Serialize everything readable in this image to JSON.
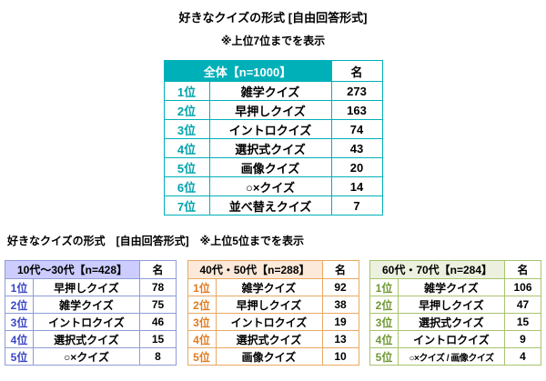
{
  "titles": {
    "main": "好きなクイズの形式 [自由回答形式]",
    "main_note": "※上位7位までを表示",
    "section2": "好きなクイズの形式　[自由回答形式]　※上位5位までを表示"
  },
  "colors": {
    "overall_accent": "#00b0b9",
    "age_10_30_header": "#ccccff",
    "age_10_30_rank": "#3a45c4",
    "age_40_50_header": "#fde9d9",
    "age_40_50_rank": "#e07b20",
    "age_60_70_header": "#ebf1de",
    "age_60_70_rank": "#6f9832"
  },
  "chart_data": [
    {
      "type": "table",
      "group": "全体【n=1000】",
      "unit": "名",
      "rows": [
        {
          "rank": "1位",
          "label": "雑学クイズ",
          "value": 273
        },
        {
          "rank": "2位",
          "label": "早押しクイズ",
          "value": 163
        },
        {
          "rank": "3位",
          "label": "イントロクイズ",
          "value": 74
        },
        {
          "rank": "4位",
          "label": "選択式クイズ",
          "value": 43
        },
        {
          "rank": "5位",
          "label": "画像クイズ",
          "value": 20
        },
        {
          "rank": "6位",
          "label": "○×クイズ",
          "value": 14
        },
        {
          "rank": "7位",
          "label": "並べ替えクイズ",
          "value": 7
        }
      ]
    },
    {
      "type": "table",
      "group": "10代～30代【n=428】",
      "unit": "名",
      "rows": [
        {
          "rank": "1位",
          "label": "早押しクイズ",
          "value": 78
        },
        {
          "rank": "2位",
          "label": "雑学クイズ",
          "value": 75
        },
        {
          "rank": "3位",
          "label": "イントロクイズ",
          "value": 46
        },
        {
          "rank": "4位",
          "label": "選択式クイズ",
          "value": 15
        },
        {
          "rank": "5位",
          "label": "○×クイズ",
          "value": 8
        }
      ]
    },
    {
      "type": "table",
      "group": "40代・50代【n=288】",
      "unit": "名",
      "rows": [
        {
          "rank": "1位",
          "label": "雑学クイズ",
          "value": 92
        },
        {
          "rank": "2位",
          "label": "早押しクイズ",
          "value": 38
        },
        {
          "rank": "3位",
          "label": "イントロクイズ",
          "value": 19
        },
        {
          "rank": "4位",
          "label": "選択式クイズ",
          "value": 13
        },
        {
          "rank": "5位",
          "label": "画像クイズ",
          "value": 10
        }
      ]
    },
    {
      "type": "table",
      "group": "60代・70代【n=284】",
      "unit": "名",
      "rows": [
        {
          "rank": "1位",
          "label": "雑学クイズ",
          "value": 106
        },
        {
          "rank": "2位",
          "label": "早押しクイズ",
          "value": 47
        },
        {
          "rank": "3位",
          "label": "選択式クイズ",
          "value": 15
        },
        {
          "rank": "4位",
          "label": "イントロクイズ",
          "value": 9
        },
        {
          "rank": "5位",
          "label": "○×クイズ / 画像クイズ",
          "value": 4
        }
      ]
    }
  ]
}
